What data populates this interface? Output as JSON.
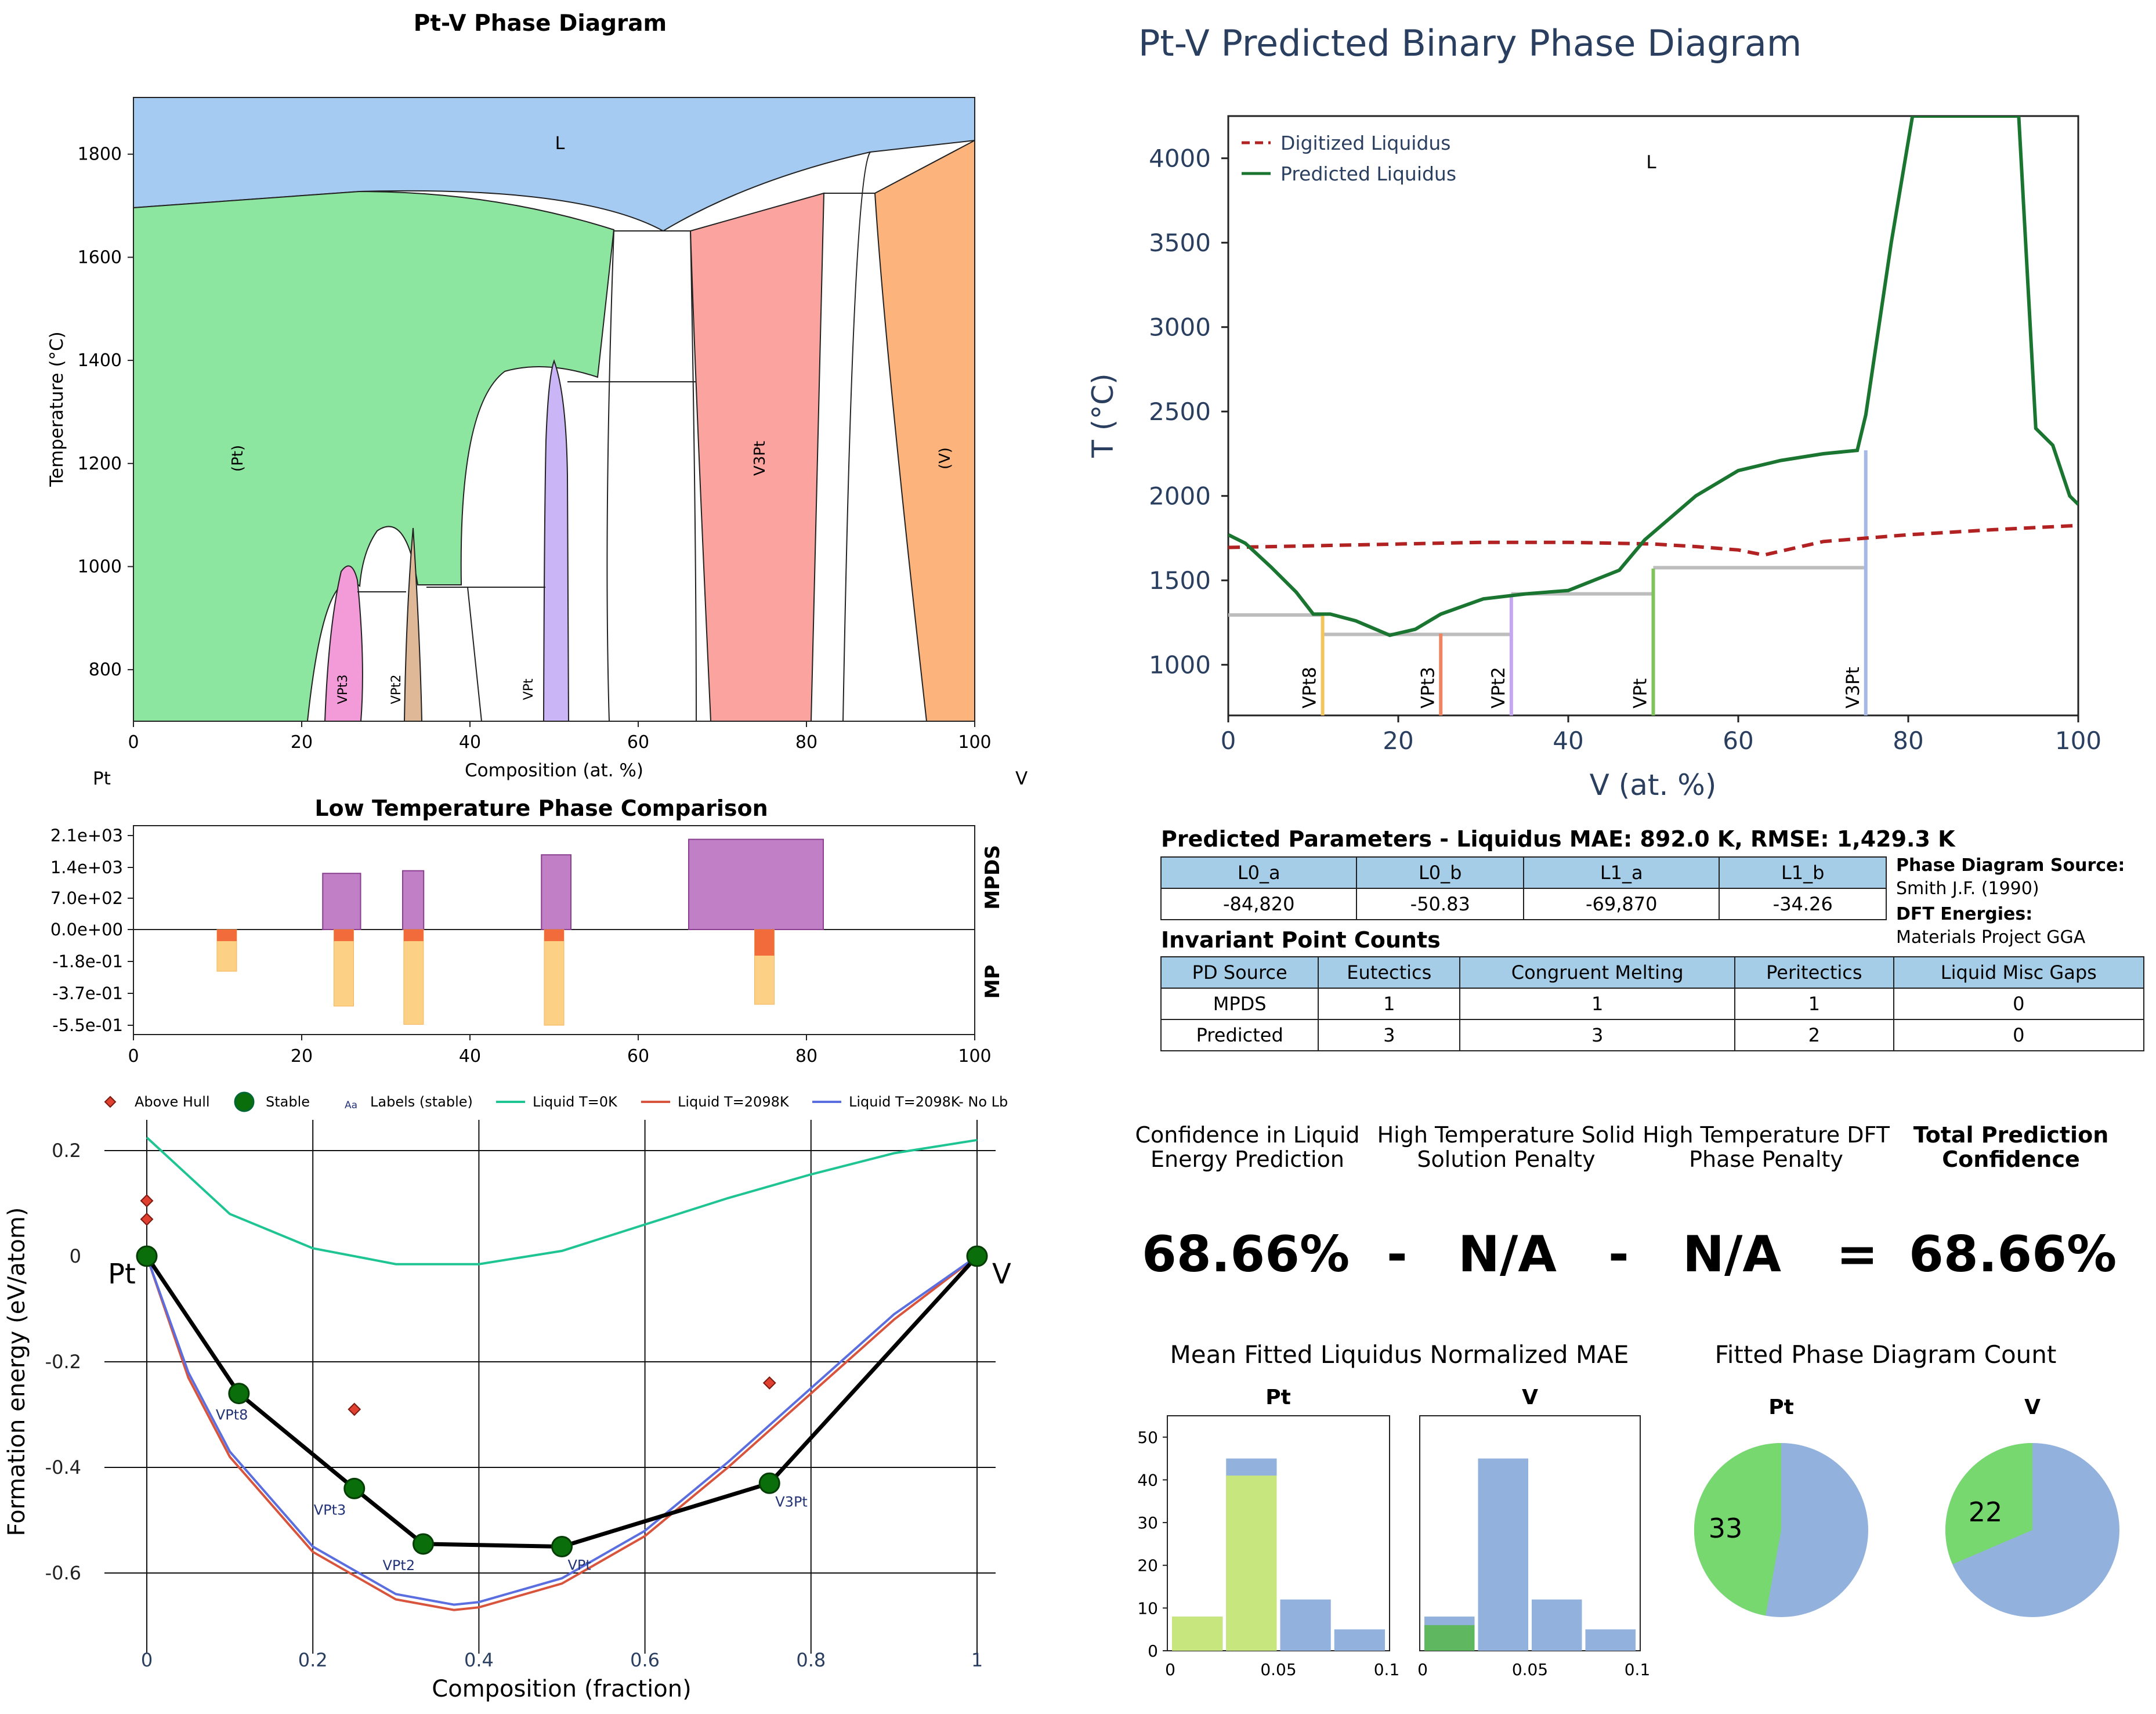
{
  "pd": {
    "title": "Pt-V Phase Diagram",
    "xlabel": "Composition (at. %)",
    "ylabel": "Temperature (°C)",
    "left_element": "Pt",
    "right_element": "V",
    "xticks": [
      "0",
      "20",
      "40",
      "60",
      "80",
      "100"
    ],
    "yticks": [
      "800",
      "1000",
      "1200",
      "1400",
      "1600",
      "1800"
    ],
    "labels": {
      "L": "L",
      "Pt": "(Pt)",
      "V": "(V)",
      "V3Pt": "V3Pt",
      "VPt3": "VPt3",
      "VPt2": "VPt2",
      "VPt": "VPt"
    },
    "colors": {
      "liquid": "#a6cbf2",
      "pt": "#8de6a0",
      "v": "#fdb37c",
      "v3pt": "#fba39e",
      "vpt3": "#f39ad8",
      "vpt2": "#dfb898",
      "vpt": "#cab6f6"
    }
  },
  "lt": {
    "title": "Low Temperature Phase Comparison",
    "label_top": "MPDS",
    "label_bottom": "MP",
    "yticks": [
      "2.1e+03",
      "1.4e+03",
      "7.0e+02",
      "0.0e+00",
      "-1.8e-01",
      "-3.7e-01",
      "-5.5e-01"
    ],
    "xticks": [
      "0",
      "20",
      "40",
      "60",
      "80",
      "100"
    ]
  },
  "hull": {
    "xlabel": "Composition (fraction)",
    "ylabel": "Formation energy (eV/atom)",
    "xticks": [
      "0",
      "0.2",
      "0.4",
      "0.6",
      "0.8",
      "1"
    ],
    "yticks": [
      "0.2",
      "0",
      "-0.2",
      "-0.4",
      "-0.6"
    ],
    "legend": [
      "Above Hull",
      "Stable",
      "Labels (stable)",
      "Liquid T=0K",
      "Liquid T=2098K",
      "Liquid T=2098K- No Lb"
    ],
    "legend_aa": "Aa",
    "end_labels": [
      "Pt",
      "V"
    ],
    "point_labels": [
      "VPt8",
      "VPt3",
      "VPt2",
      "VPt",
      "V3Pt"
    ]
  },
  "pred": {
    "title": "Pt-V Predicted Binary Phase Diagram",
    "xlabel": "V (at. %)",
    "ylabel": "T (°C)",
    "xticks": [
      "0",
      "20",
      "40",
      "60",
      "80",
      "100"
    ],
    "yticks": [
      "1000",
      "1500",
      "2000",
      "2500",
      "3000",
      "3500",
      "4000"
    ],
    "legend": [
      "Digitized Liquidus",
      "Predicted Liquidus"
    ],
    "L": "L",
    "compounds": [
      "VPt8",
      "VPt3",
      "VPt2",
      "VPt",
      "V3Pt"
    ]
  },
  "params": {
    "title": "Predicted Parameters - Liquidus MAE: 892.0 K, RMSE: 1,429.3 K",
    "headers": [
      "L0_a",
      "L0_b",
      "L1_a",
      "L1_b"
    ],
    "values": [
      "-84,820",
      "-50.83",
      "-69,870",
      "-34.26"
    ],
    "source_label": "Phase Diagram Source:",
    "source_value": "Smith J.F. (1990)",
    "dft_label": "DFT Energies:",
    "dft_value": "Materials Project GGA"
  },
  "inv": {
    "title": "Invariant Point Counts",
    "headers": [
      "PD Source",
      "Eutectics",
      "Congruent Melting",
      "Peritectics",
      "Liquid Misc Gaps"
    ],
    "rows": [
      [
        "MPDS",
        "1",
        "1",
        "1",
        "0"
      ],
      [
        "Predicted",
        "3",
        "3",
        "2",
        "0"
      ]
    ]
  },
  "conf": {
    "h1": "Confidence in Liquid Energy Prediction",
    "h2": "High Temperature Solid Solution Penalty",
    "h3": "High Temperature DFT Phase Penalty",
    "h4": "Total Prediction Confidence",
    "v1": "68.66%",
    "op1": "-",
    "v2": "N/A",
    "op2": "-",
    "v3": "N/A",
    "op3": "=",
    "v4": "68.66%"
  },
  "hist": {
    "title": "Mean Fitted Liquidus Normalized MAE",
    "sub1": "Pt",
    "sub2": "V",
    "yticks": [
      "0",
      "10",
      "20",
      "30",
      "40",
      "50"
    ],
    "xticks": [
      "0",
      "0.05",
      "0.1"
    ]
  },
  "pies": {
    "title": "Fitted Phase Diagram Count",
    "sub1": "Pt",
    "sub2": "V",
    "v1": "33",
    "v2": "22"
  },
  "chart_data": [
    {
      "type": "area",
      "title": "Pt-V Phase Diagram",
      "xlabel": "Composition (at. %)",
      "ylabel": "Temperature (°C)",
      "xlim": [
        0,
        100
      ],
      "ylim": [
        700,
        1910
      ],
      "regions": [
        "L",
        "(Pt)",
        "VPt3",
        "VPt2",
        "VPt",
        "V3Pt",
        "(V)"
      ],
      "liquidus": {
        "x": [
          0,
          27,
          57,
          63,
          80,
          100
        ],
        "y": [
          1695,
          1730,
          1690,
          1650,
          1735,
          1825
        ]
      }
    },
    {
      "type": "bar",
      "title": "Low Temperature Phase Comparison",
      "xlim": [
        0,
        100
      ],
      "series": [
        {
          "name": "MPDS",
          "x_ranges": [
            [
              22.5,
              27
            ],
            [
              32,
              34.5
            ],
            [
              48.5,
              52
            ],
            [
              66,
              82
            ]
          ],
          "values": [
            1270,
            1330,
            1690,
            2040
          ]
        },
        {
          "name": "MP",
          "x": [
            11.1,
            25,
            33.3,
            50,
            75
          ],
          "values": [
            -0.24,
            -0.44,
            -0.545,
            -0.55,
            -0.43
          ]
        }
      ]
    },
    {
      "type": "line",
      "xlabel": "Composition (fraction)",
      "ylabel": "Formation energy (eV/atom)",
      "xlim": [
        0,
        1
      ],
      "ylim": [
        -0.74,
        0.29
      ],
      "series": [
        {
          "name": "Liquid T=0K",
          "x": [
            0,
            0.1,
            0.2,
            0.3,
            0.4,
            0.5,
            0.6,
            0.7,
            0.8,
            0.9,
            1.0
          ],
          "y": [
            0.225,
            0.08,
            0.015,
            -0.015,
            -0.015,
            0.01,
            0.06,
            0.11,
            0.155,
            0.195,
            0.22
          ]
        },
        {
          "name": "Liquid T=2098K",
          "x": [
            0,
            0.05,
            0.1,
            0.2,
            0.3,
            0.37,
            0.4,
            0.5,
            0.6,
            0.7,
            0.8,
            0.9,
            1.0
          ],
          "y": [
            0,
            -0.23,
            -0.38,
            -0.56,
            -0.65,
            -0.67,
            -0.665,
            -0.62,
            -0.53,
            -0.4,
            -0.26,
            -0.12,
            0
          ]
        },
        {
          "name": "Liquid T=2098K- No Lb",
          "x": [
            0,
            0.05,
            0.1,
            0.2,
            0.3,
            0.37,
            0.4,
            0.5,
            0.6,
            0.7,
            0.8,
            0.9,
            1.0
          ],
          "y": [
            0,
            -0.22,
            -0.37,
            -0.55,
            -0.64,
            -0.66,
            -0.655,
            -0.61,
            -0.52,
            -0.39,
            -0.25,
            -0.11,
            0
          ]
        },
        {
          "name": "Stable",
          "x": [
            0,
            0.111,
            0.25,
            0.333,
            0.5,
            0.75,
            1.0
          ],
          "y": [
            0,
            -0.26,
            -0.44,
            -0.545,
            -0.55,
            -0.43,
            0
          ]
        },
        {
          "name": "Above Hull",
          "x": [
            0,
            0,
            0.25,
            0.75
          ],
          "y": [
            0.105,
            0.07,
            -0.29,
            -0.24
          ]
        }
      ]
    },
    {
      "type": "line",
      "title": "Pt-V Predicted Binary Phase Diagram",
      "xlabel": "V (at. %)",
      "ylabel": "T (°C)",
      "xlim": [
        0,
        100
      ],
      "ylim": [
        700,
        4250
      ],
      "series": [
        {
          "name": "Digitized Liquidus",
          "x": [
            0,
            10,
            20,
            30,
            40,
            50,
            55,
            60,
            63,
            70,
            80,
            90,
            100
          ],
          "y": [
            1695,
            1705,
            1715,
            1725,
            1725,
            1715,
            1700,
            1680,
            1650,
            1730,
            1770,
            1800,
            1825
          ]
        },
        {
          "name": "Predicted Liquidus",
          "x": [
            0,
            2,
            5,
            8,
            10,
            12,
            15,
            19,
            22,
            25,
            30,
            35,
            40,
            46,
            49,
            55,
            60,
            65,
            70,
            74,
            75,
            78,
            80.5,
            93,
            95,
            97,
            99,
            100
          ],
          "y": [
            1770,
            1720,
            1580,
            1430,
            1300,
            1300,
            1260,
            1175,
            1210,
            1300,
            1390,
            1420,
            1440,
            1560,
            1740,
            2000,
            2150,
            2210,
            2250,
            2270,
            2480,
            3500,
            4250,
            4250,
            2400,
            2300,
            2000,
            1950
          ]
        }
      ]
    },
    {
      "type": "bar",
      "title": "Mean Fitted Liquidus Normalized MAE",
      "series": [
        {
          "name": "Pt",
          "bins": [
            [
              0,
              0.025
            ],
            [
              0.025,
              0.05
            ],
            [
              0.05,
              0.075
            ],
            [
              0.075,
              0.1
            ]
          ],
          "total": [
            8,
            45,
            12,
            5
          ],
          "highlight": [
            8,
            41,
            0,
            0
          ]
        },
        {
          "name": "V",
          "bins": [
            [
              0,
              0.025
            ],
            [
              0.025,
              0.05
            ],
            [
              0.05,
              0.075
            ],
            [
              0.075,
              0.1
            ]
          ],
          "total": [
            8,
            45,
            12,
            5
          ],
          "highlight": [
            6,
            0,
            0,
            0
          ]
        }
      ]
    },
    {
      "type": "pie",
      "title": "Fitted Phase Diagram Count",
      "series": [
        {
          "name": "Pt",
          "values": [
            33,
            37
          ]
        },
        {
          "name": "V",
          "values": [
            22,
            48
          ]
        }
      ]
    }
  ]
}
